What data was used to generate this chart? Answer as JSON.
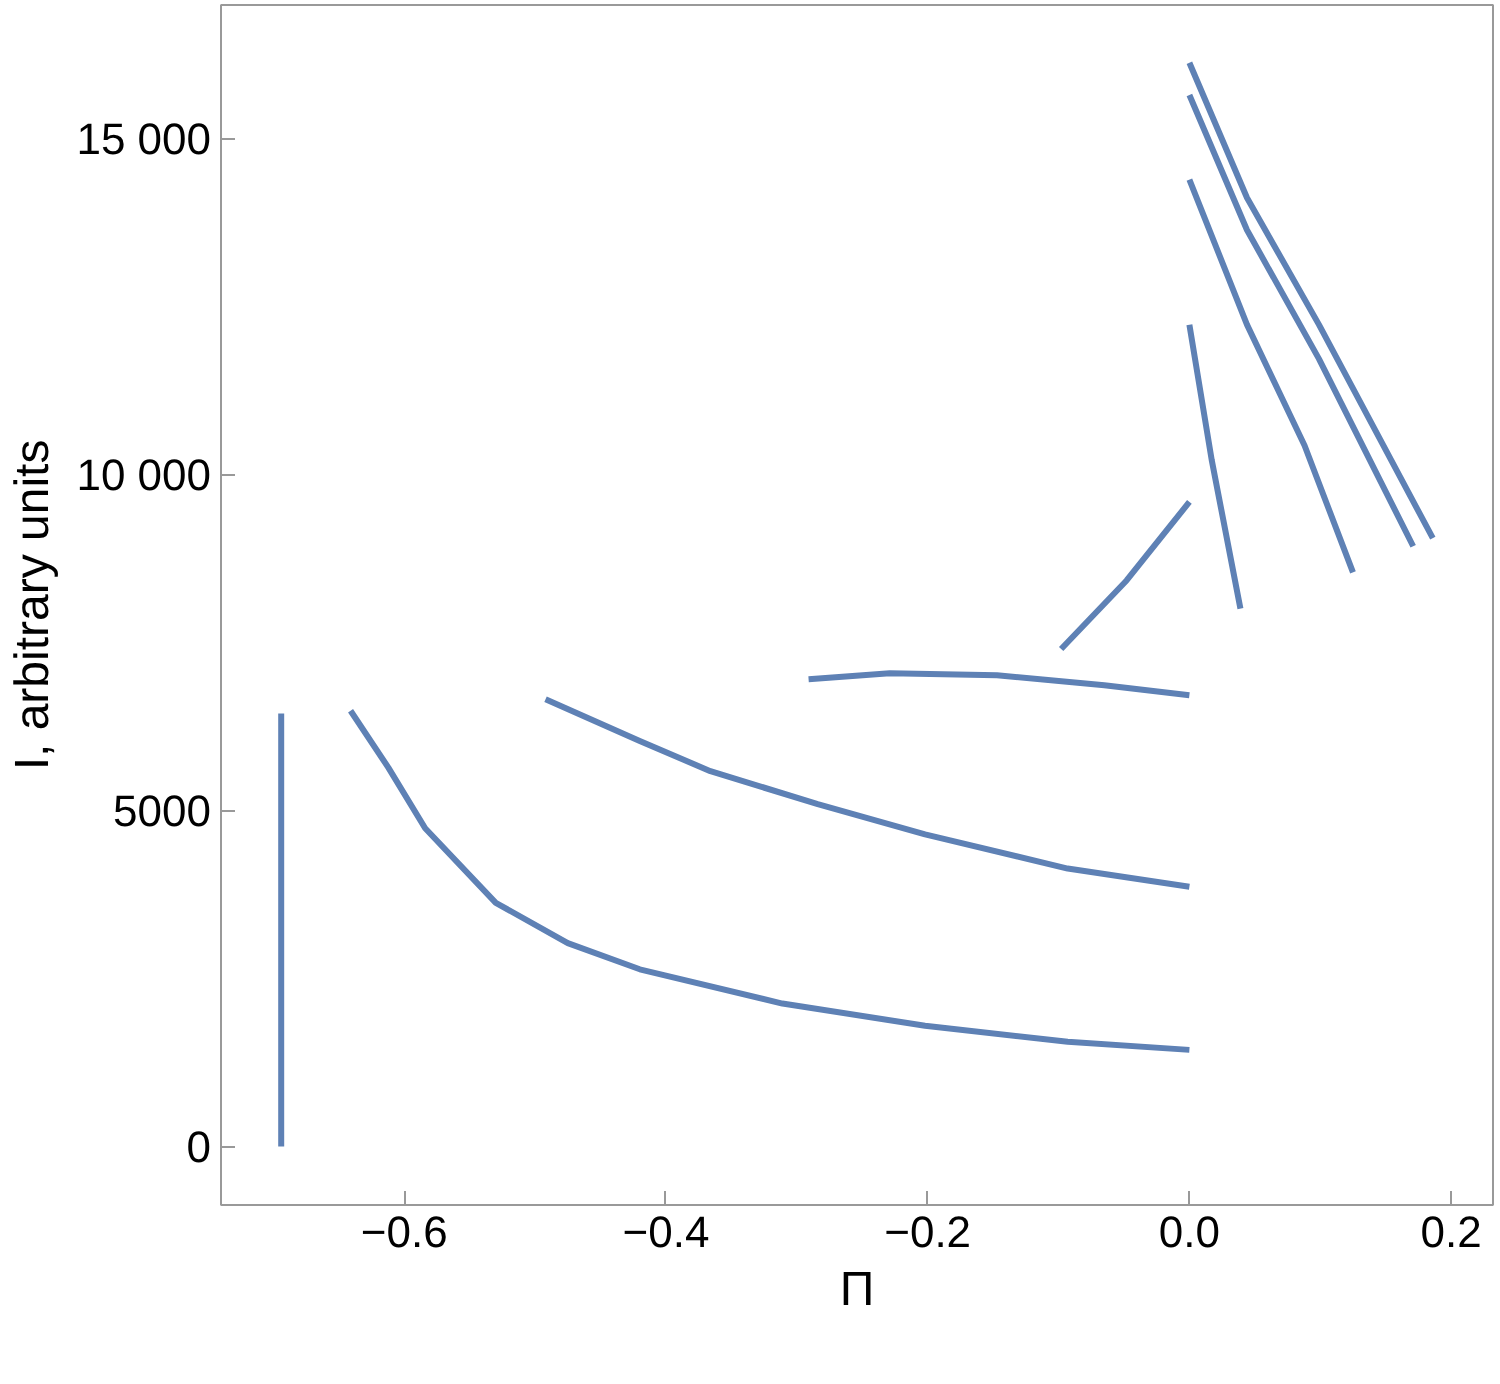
{
  "chart_data": {
    "type": "line",
    "xlabel": "Π",
    "ylabel": "I, arbitrary units",
    "xlim": [
      -0.74,
      0.232
    ],
    "ylim": [
      -870,
      17000
    ],
    "xticks": [
      -0.6,
      -0.4,
      -0.2,
      {
        "value": 0,
        "label": "0.0"
      },
      0.2
    ],
    "yticks": [
      0,
      5000,
      {
        "value": 10000,
        "label": "10 000"
      },
      {
        "value": 15000,
        "label": "15 000"
      }
    ],
    "grid": false,
    "marker": "none",
    "line_style": "solid",
    "series": [
      {
        "color": "#5e81b5",
        "x": [
          -0.694,
          -0.694
        ],
        "values": [
          0,
          6450
        ]
      },
      {
        "color": "#5e81b5",
        "x": [
          -0.641,
          -0.612,
          -0.584,
          -0.53,
          -0.475,
          -0.42,
          -0.311,
          -0.202,
          -0.093,
          0
        ],
        "values": [
          6490,
          5640,
          4740,
          3630,
          3030,
          2640,
          2130,
          1800,
          1560,
          1440
        ]
      },
      {
        "color": "#5e81b5",
        "x": [
          -0.492,
          -0.42,
          -0.366,
          -0.284,
          -0.202,
          -0.093,
          0
        ],
        "values": [
          6660,
          6040,
          5590,
          5100,
          4650,
          4140,
          3870
        ]
      },
      {
        "color": "#5e81b5",
        "x": [
          -0.291,
          -0.229,
          -0.147,
          -0.065,
          0
        ],
        "values": [
          6960,
          7050,
          7020,
          6870,
          6720
        ]
      },
      {
        "color": "#5e81b5",
        "x": [
          -0.098,
          -0.048,
          0
        ],
        "values": [
          7410,
          8430,
          9600
        ]
      },
      {
        "color": "#5e81b5",
        "x": [
          0,
          0.017,
          0.039
        ],
        "values": [
          12240,
          10230,
          8010
        ]
      },
      {
        "color": "#5e81b5",
        "x": [
          0,
          0.044,
          0.088,
          0.125
        ],
        "values": [
          14400,
          12240,
          10440,
          8550
        ]
      },
      {
        "color": "#5e81b5",
        "x": [
          0,
          0.044,
          0.099,
          0.171
        ],
        "values": [
          15660,
          13650,
          11730,
          8940
        ]
      },
      {
        "color": "#5e81b5",
        "x": [
          0,
          0.044,
          0.099,
          0.186
        ],
        "values": [
          16140,
          14130,
          12240,
          9060
        ]
      }
    ]
  }
}
